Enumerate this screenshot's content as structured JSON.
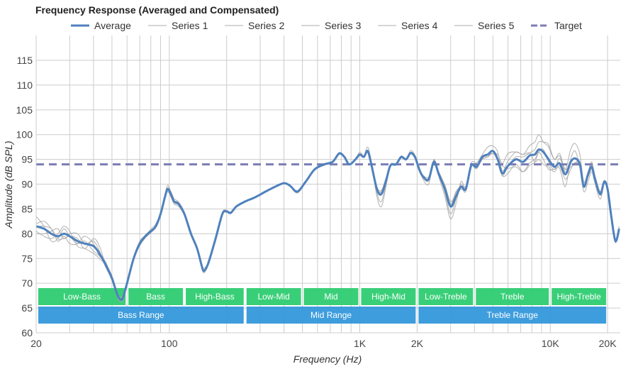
{
  "chart_data": {
    "type": "line",
    "title": "Frequency Response (Averaged and Compensated)",
    "xlabel": "Frequency (Hz)",
    "ylabel": "Amplitude (dB SPL)",
    "xscale": "log",
    "xlim": [
      20,
      23000
    ],
    "ylim": [
      60,
      120
    ],
    "grid": true,
    "legend_position": "top-center",
    "x_ticks": [
      {
        "value": 20,
        "label": "20"
      },
      {
        "value": 100,
        "label": "100"
      },
      {
        "value": 1000,
        "label": "1K"
      },
      {
        "value": 2000,
        "label": "2K"
      },
      {
        "value": 10000,
        "label": "10K"
      },
      {
        "value": 20000,
        "label": "20K"
      }
    ],
    "x_gridlines": [
      20,
      30,
      40,
      50,
      60,
      70,
      80,
      90,
      100,
      200,
      300,
      400,
      500,
      600,
      700,
      800,
      900,
      1000,
      2000,
      3000,
      4000,
      5000,
      6000,
      7000,
      8000,
      9000,
      10000,
      20000
    ],
    "y_ticks": [
      60,
      65,
      70,
      75,
      80,
      85,
      90,
      95,
      100,
      105,
      110,
      115
    ],
    "legend": [
      {
        "name": "Average",
        "style": "solid",
        "color": "#4f81bd"
      },
      {
        "name": "Series 1",
        "style": "solid",
        "color": "#c8c8c8"
      },
      {
        "name": "Series 2",
        "style": "solid",
        "color": "#c8c8c8"
      },
      {
        "name": "Series 3",
        "style": "solid",
        "color": "#c8c8c8"
      },
      {
        "name": "Series 4",
        "style": "solid",
        "color": "#c8c8c8"
      },
      {
        "name": "Series 5",
        "style": "solid",
        "color": "#c8c8c8"
      },
      {
        "name": "Target",
        "style": "dashed",
        "color": "#7b7db5"
      }
    ],
    "target": 94,
    "series": [
      {
        "name": "Average",
        "color": "#4f81bd",
        "x": [
          20,
          22,
          24,
          26,
          28,
          30,
          33,
          36,
          40,
          43,
          46,
          50,
          53,
          55,
          57,
          60,
          65,
          70,
          75,
          80,
          85,
          90,
          95,
          98,
          102,
          106,
          112,
          120,
          130,
          140,
          148,
          152,
          160,
          175,
          190,
          200,
          210,
          225,
          250,
          280,
          320,
          360,
          400,
          430,
          470,
          520,
          580,
          650,
          720,
          780,
          830,
          880,
          950,
          1000,
          1050,
          1100,
          1150,
          1230,
          1300,
          1380,
          1450,
          1550,
          1650,
          1750,
          1850,
          1950,
          2050,
          2150,
          2300,
          2450,
          2600,
          2800,
          3000,
          3200,
          3400,
          3600,
          3850,
          4100,
          4400,
          4700,
          5000,
          5300,
          5600,
          6000,
          6600,
          7200,
          7800,
          8300,
          8700,
          9200,
          9800,
          10500,
          11200,
          12000,
          12800,
          13500,
          14300,
          15000,
          15800,
          16500,
          17200,
          18300,
          19200,
          20000,
          21000,
          22000,
          23000
        ],
        "y": [
          81.5,
          81,
          80,
          79.5,
          80,
          79.5,
          78.5,
          78,
          77.5,
          76,
          74,
          71,
          68,
          66.8,
          67,
          70,
          75,
          78,
          79.5,
          80.5,
          81.5,
          84,
          87.5,
          89,
          88,
          86.5,
          86,
          84,
          80,
          77,
          73.5,
          72.5,
          74,
          79,
          84,
          84.5,
          84.2,
          85.5,
          86.5,
          87.3,
          88.5,
          89.5,
          90.2,
          89.7,
          88.5,
          90.5,
          93,
          94,
          94.5,
          96.2,
          95.5,
          94,
          95,
          96,
          95.5,
          96.7,
          94,
          89,
          88,
          91,
          93.8,
          94,
          95.5,
          95,
          96.3,
          95.5,
          93,
          91.5,
          91,
          94.5,
          92,
          89,
          85.5,
          87.5,
          89.5,
          89,
          93.8,
          93.5,
          95.5,
          96,
          96.7,
          95,
          92.2,
          93.7,
          95,
          94.5,
          95.8,
          96,
          97,
          96.5,
          95,
          93.5,
          94.2,
          92,
          94.5,
          95.2,
          94,
          89.5,
          92,
          93.5,
          91,
          88,
          90.5,
          89,
          83,
          78.5,
          81
        ]
      },
      {
        "name": "Series 1",
        "color": "#c8c8c8",
        "offsets": [
          2.0,
          0.5,
          -1.5,
          -0.5,
          1.0,
          0.0,
          -0.5,
          0.5,
          -1.0,
          -0.5,
          0.2,
          0.5,
          0.3,
          0.4,
          0.6,
          0.0,
          0.3,
          0.5,
          0.2,
          0.4,
          0.5,
          0.3,
          0.5,
          0.8,
          0.5,
          0.6,
          0.4,
          0.3,
          0.2,
          0.3,
          0.4,
          0.5,
          0.3,
          0.2,
          0.3,
          0.2,
          0.2,
          0.2,
          0.1,
          0.1,
          0.1,
          0.1,
          0.1,
          0.1,
          0.2,
          0.1,
          0.1,
          0.1,
          0.2,
          0.2,
          0.1,
          0.1,
          0.1,
          0.5,
          0.2,
          0.8,
          0.5,
          -1.5,
          -2.5,
          -1.0,
          0.2,
          0.1,
          0.2,
          0.1,
          0.5,
          0.3,
          0.5,
          -0.5,
          -1.0,
          0.5,
          -0.5,
          -1.5,
          -2.5,
          -1.5,
          1.0,
          0.5,
          0.5,
          0.8,
          0.5,
          1.5,
          1.0,
          1.5,
          0.5,
          1.0,
          1.5,
          1.5,
          2.0,
          2.5,
          3.0,
          2.0,
          2.5,
          1.5,
          2.0,
          1.0,
          2.5,
          3.0,
          2.0,
          1.0,
          0.5,
          1.0,
          0.5,
          0.5,
          0.2,
          0.3,
          0.4,
          0.2,
          0.5
        ]
      },
      {
        "name": "Series 2",
        "color": "#c8c8c8",
        "offsets": [
          -1.5,
          -1.0,
          0.5,
          1.5,
          -1.0,
          0.5,
          1.5,
          0.0,
          1.0,
          0.5,
          -0.5,
          -0.3,
          -0.5,
          -0.4,
          -0.3,
          -0.2,
          -0.3,
          -0.2,
          -0.1,
          -0.2,
          -0.2,
          -0.2,
          -0.3,
          -0.5,
          -0.6,
          -0.5,
          -0.5,
          -0.3,
          -0.2,
          -0.3,
          -0.2,
          -0.4,
          -0.3,
          -0.2,
          -0.1,
          -0.1,
          -0.1,
          -0.1,
          -0.1,
          -0.1,
          -0.1,
          -0.1,
          -0.1,
          -0.1,
          -0.3,
          -0.1,
          -0.2,
          -0.2,
          -0.1,
          -0.1,
          -0.1,
          0.0,
          -0.1,
          -0.1,
          -0.1,
          -0.2,
          0.3,
          0.5,
          0.8,
          0.5,
          0.0,
          -0.1,
          -0.1,
          0.0,
          -0.2,
          -0.3,
          0.2,
          0.3,
          0.5,
          0.0,
          0.5,
          0.8,
          1.0,
          0.8,
          0.0,
          -0.5,
          -0.2,
          0.3,
          -0.3,
          0.0,
          -0.5,
          1.0,
          2.0,
          2.5,
          1.5,
          1.5,
          0.5,
          -1.5,
          -2.0,
          -2.5,
          -1.5,
          -1.0,
          -0.5,
          -1.0,
          -1.5,
          -0.8,
          -0.5,
          0.5,
          -0.5,
          -0.5,
          0.5,
          0.3,
          -0.3,
          -0.2,
          0.3,
          0.2,
          -0.2
        ]
      },
      {
        "name": "Series 3",
        "color": "#c8c8c8",
        "offsets": [
          0.5,
          1.5,
          1.0,
          -1.0,
          -0.5,
          -1.5,
          -0.5,
          1.5,
          0.5,
          -0.5,
          0.5,
          0.2,
          0.2,
          0.1,
          0.2,
          0.3,
          0.2,
          0.1,
          0.3,
          0.1,
          0.0,
          0.2,
          0.1,
          0.0,
          0.1,
          0.2,
          0.3,
          0.2,
          0.1,
          0.2,
          0.1,
          0.0,
          0.1,
          0.1,
          0.0,
          0.1,
          0.1,
          0.0,
          0.1,
          0.0,
          0.0,
          0.0,
          0.0,
          0.0,
          0.1,
          0.0,
          0.1,
          0.1,
          0.0,
          -0.1,
          0.0,
          0.1,
          0.0,
          0.0,
          0.1,
          0.0,
          -0.3,
          -0.8,
          -1.5,
          -0.5,
          0.1,
          0.0,
          0.1,
          0.2,
          0.0,
          0.1,
          -0.2,
          -0.2,
          -0.3,
          0.3,
          0.1,
          -0.8,
          -1.5,
          -0.5,
          0.5,
          0.3,
          0.2,
          -0.2,
          0.0,
          -0.5,
          -0.5,
          0.0,
          1.5,
          -0.5,
          -1.5,
          -2.0,
          -1.5,
          -1.0,
          -0.5,
          -1.5,
          -2.0,
          -0.5,
          -1.0,
          -2.5,
          0.5,
          1.5,
          -0.5,
          -1.0,
          -1.5,
          -1.0,
          -1.0,
          -1.0,
          -0.5,
          -0.3,
          -0.5,
          -0.3,
          0.2
        ]
      },
      {
        "name": "Series 4",
        "color": "#c8c8c8",
        "offsets": [
          -1.0,
          -1.5,
          -1.0,
          0.5,
          1.5,
          1.0,
          -1.0,
          -1.0,
          -1.5,
          -1.0,
          -0.3,
          -0.4,
          -0.2,
          -0.3,
          -0.4,
          -0.3,
          -0.2,
          -0.4,
          -0.3,
          -0.3,
          -0.2,
          -0.1,
          -0.2,
          0.3,
          0.2,
          -0.2,
          -0.2,
          -0.2,
          -0.3,
          -0.2,
          -0.3,
          -0.2,
          -0.2,
          -0.3,
          -0.2,
          -0.2,
          -0.1,
          -0.1,
          0.0,
          0.0,
          0.0,
          0.0,
          0.0,
          0.0,
          -0.1,
          -0.1,
          -0.1,
          0.0,
          0.0,
          0.0,
          0.0,
          -0.1,
          0.0,
          -0.2,
          0.0,
          -0.3,
          0.2,
          0.3,
          0.5,
          0.3,
          -0.1,
          -0.1,
          -0.2,
          -0.1,
          -0.1,
          -0.2,
          0.0,
          0.0,
          0.2,
          -0.5,
          -0.3,
          0.3,
          0.5,
          1.0,
          0.0,
          0.0,
          -0.3,
          -0.4,
          -0.5,
          -0.5,
          0.0,
          0.3,
          -0.5,
          -1.5,
          -1.0,
          -2.0,
          -2.0,
          -1.5,
          -0.5,
          0.5,
          -0.5,
          -0.5,
          1.0,
          0.5,
          -1.0,
          -1.0,
          0.5,
          0.0,
          -0.5,
          -0.3,
          -0.5,
          -0.3,
          -0.5,
          -0.3,
          -0.3,
          -0.3,
          0.0
        ]
      },
      {
        "name": "Series 5",
        "color": "#c8c8c8",
        "offsets": [
          0.0,
          0.5,
          1.0,
          -0.5,
          -1.0,
          0.0,
          0.5,
          -1.0,
          1.5,
          1.5,
          0.1,
          0.0,
          0.2,
          0.2,
          0.0,
          0.2,
          0.1,
          0.0,
          0.1,
          0.1,
          0.0,
          0.1,
          0.1,
          0.2,
          0.0,
          0.1,
          0.0,
          -0.1,
          0.2,
          0.1,
          0.0,
          0.1,
          0.0,
          0.0,
          0.1,
          0.0,
          0.0,
          0.0,
          0.0,
          0.0,
          0.0,
          0.0,
          0.0,
          0.0,
          0.0,
          0.0,
          0.0,
          0.0,
          0.0,
          0.0,
          0.0,
          0.0,
          0.0,
          0.0,
          0.0,
          0.0,
          0.0,
          0.0,
          0.5,
          0.3,
          -0.1,
          0.0,
          0.0,
          0.0,
          0.0,
          0.0,
          0.0,
          0.0,
          0.0,
          0.0,
          0.0,
          0.5,
          0.3,
          0.5,
          -0.5,
          0.0,
          0.0,
          0.0,
          0.0,
          0.0,
          0.0,
          0.0,
          -0.5,
          0.0,
          0.5,
          1.0,
          0.5,
          1.0,
          1.5,
          2.0,
          3.0,
          1.5,
          1.5,
          1.0,
          -0.5,
          -1.0,
          0.0,
          0.5,
          0.5,
          0.5,
          0.3,
          0.5,
          0.3,
          0.0,
          0.2,
          0.2,
          0.0
        ]
      }
    ],
    "bands_top": [
      {
        "label": "Low-Bass",
        "from": 20,
        "to": 60
      },
      {
        "label": "Bass",
        "from": 60,
        "to": 120
      },
      {
        "label": "High-Bass",
        "from": 120,
        "to": 250
      },
      {
        "label": "Low-Mid",
        "from": 250,
        "to": 500
      },
      {
        "label": "Mid",
        "from": 500,
        "to": 1000
      },
      {
        "label": "High-Mid",
        "from": 1000,
        "to": 2000
      },
      {
        "label": "Low-Treble",
        "from": 2000,
        "to": 4000
      },
      {
        "label": "Treble",
        "from": 4000,
        "to": 10000
      },
      {
        "label": "High-Treble",
        "from": 10000,
        "to": 20000
      }
    ],
    "bands_bottom": [
      {
        "label": "Bass Range",
        "from": 20,
        "to": 250
      },
      {
        "label": "Mid Range",
        "from": 250,
        "to": 2000
      },
      {
        "label": "Treble Range",
        "from": 2000,
        "to": 20000
      }
    ],
    "band_colors": {
      "top": "#2ecc71",
      "bottom": "#3498db"
    }
  }
}
